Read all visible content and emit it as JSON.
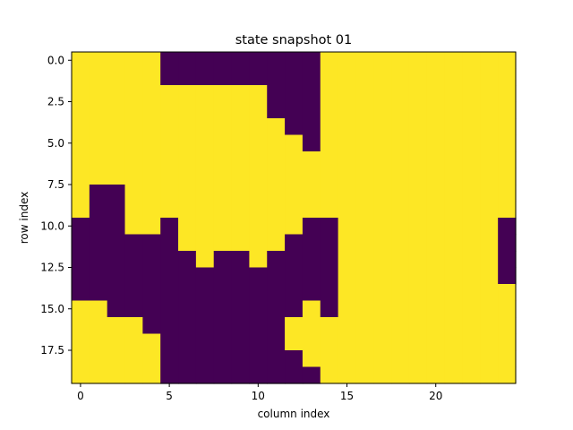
{
  "chart_data": {
    "type": "heatmap",
    "title": "state snapshot 01",
    "xlabel": "column index",
    "ylabel": "row index",
    "x_ticks": [
      0,
      5,
      10,
      15,
      20
    ],
    "y_ticks": [
      0.0,
      2.5,
      5.0,
      7.5,
      10.0,
      12.5,
      15.0,
      17.5
    ],
    "x_tick_labels": [
      "0",
      "5",
      "10",
      "15",
      "20"
    ],
    "y_tick_labels": [
      "0.0",
      "2.5",
      "5.0",
      "7.5",
      "10.0",
      "12.5",
      "15.0",
      "17.5"
    ],
    "xlim": [
      -0.5,
      24.5
    ],
    "ylim": [
      19.5,
      -0.5
    ],
    "rows": 20,
    "cols": 25,
    "colors": {
      "0": "#440154",
      "1": "#fde725"
    },
    "values": [
      [
        1,
        1,
        1,
        1,
        1,
        0,
        0,
        0,
        0,
        0,
        0,
        0,
        0,
        0,
        1,
        1,
        1,
        1,
        1,
        1,
        1,
        1,
        1,
        1,
        1
      ],
      [
        1,
        1,
        1,
        1,
        1,
        0,
        0,
        0,
        0,
        0,
        0,
        0,
        0,
        0,
        1,
        1,
        1,
        1,
        1,
        1,
        1,
        1,
        1,
        1,
        1
      ],
      [
        1,
        1,
        1,
        1,
        1,
        1,
        1,
        1,
        1,
        1,
        1,
        0,
        0,
        0,
        1,
        1,
        1,
        1,
        1,
        1,
        1,
        1,
        1,
        1,
        1
      ],
      [
        1,
        1,
        1,
        1,
        1,
        1,
        1,
        1,
        1,
        1,
        1,
        0,
        0,
        0,
        1,
        1,
        1,
        1,
        1,
        1,
        1,
        1,
        1,
        1,
        1
      ],
      [
        1,
        1,
        1,
        1,
        1,
        1,
        1,
        1,
        1,
        1,
        1,
        1,
        0,
        0,
        1,
        1,
        1,
        1,
        1,
        1,
        1,
        1,
        1,
        1,
        1
      ],
      [
        1,
        1,
        1,
        1,
        1,
        1,
        1,
        1,
        1,
        1,
        1,
        1,
        1,
        0,
        1,
        1,
        1,
        1,
        1,
        1,
        1,
        1,
        1,
        1,
        1
      ],
      [
        1,
        1,
        1,
        1,
        1,
        1,
        1,
        1,
        1,
        1,
        1,
        1,
        1,
        1,
        1,
        1,
        1,
        1,
        1,
        1,
        1,
        1,
        1,
        1,
        1
      ],
      [
        1,
        1,
        1,
        1,
        1,
        1,
        1,
        1,
        1,
        1,
        1,
        1,
        1,
        1,
        1,
        1,
        1,
        1,
        1,
        1,
        1,
        1,
        1,
        1,
        1
      ],
      [
        1,
        0,
        0,
        1,
        1,
        1,
        1,
        1,
        1,
        1,
        1,
        1,
        1,
        1,
        1,
        1,
        1,
        1,
        1,
        1,
        1,
        1,
        1,
        1,
        1
      ],
      [
        1,
        0,
        0,
        1,
        1,
        1,
        1,
        1,
        1,
        1,
        1,
        1,
        1,
        1,
        1,
        1,
        1,
        1,
        1,
        1,
        1,
        1,
        1,
        1,
        1
      ],
      [
        0,
        0,
        0,
        1,
        1,
        0,
        1,
        1,
        1,
        1,
        1,
        1,
        1,
        0,
        0,
        1,
        1,
        1,
        1,
        1,
        1,
        1,
        1,
        1,
        0
      ],
      [
        0,
        0,
        0,
        0,
        0,
        0,
        1,
        1,
        1,
        1,
        1,
        1,
        0,
        0,
        0,
        1,
        1,
        1,
        1,
        1,
        1,
        1,
        1,
        1,
        0
      ],
      [
        0,
        0,
        0,
        0,
        0,
        0,
        0,
        1,
        0,
        0,
        1,
        0,
        0,
        0,
        0,
        1,
        1,
        1,
        1,
        1,
        1,
        1,
        1,
        1,
        0
      ],
      [
        0,
        0,
        0,
        0,
        0,
        0,
        0,
        0,
        0,
        0,
        0,
        0,
        0,
        0,
        0,
        1,
        1,
        1,
        1,
        1,
        1,
        1,
        1,
        1,
        0
      ],
      [
        0,
        0,
        0,
        0,
        0,
        0,
        0,
        0,
        0,
        0,
        0,
        0,
        0,
        0,
        0,
        1,
        1,
        1,
        1,
        1,
        1,
        1,
        1,
        1,
        1
      ],
      [
        1,
        1,
        0,
        0,
        0,
        0,
        0,
        0,
        0,
        0,
        0,
        0,
        0,
        1,
        0,
        1,
        1,
        1,
        1,
        1,
        1,
        1,
        1,
        1,
        1
      ],
      [
        1,
        1,
        1,
        1,
        0,
        0,
        0,
        0,
        0,
        0,
        0,
        0,
        1,
        1,
        1,
        1,
        1,
        1,
        1,
        1,
        1,
        1,
        1,
        1,
        1
      ],
      [
        1,
        1,
        1,
        1,
        1,
        0,
        0,
        0,
        0,
        0,
        0,
        0,
        1,
        1,
        1,
        1,
        1,
        1,
        1,
        1,
        1,
        1,
        1,
        1,
        1
      ],
      [
        1,
        1,
        1,
        1,
        1,
        0,
        0,
        0,
        0,
        0,
        0,
        0,
        0,
        1,
        1,
        1,
        1,
        1,
        1,
        1,
        1,
        1,
        1,
        1,
        1
      ],
      [
        1,
        1,
        1,
        1,
        1,
        0,
        0,
        0,
        0,
        0,
        0,
        0,
        0,
        0,
        1,
        1,
        1,
        1,
        1,
        1,
        1,
        1,
        1,
        1,
        1
      ]
    ]
  }
}
